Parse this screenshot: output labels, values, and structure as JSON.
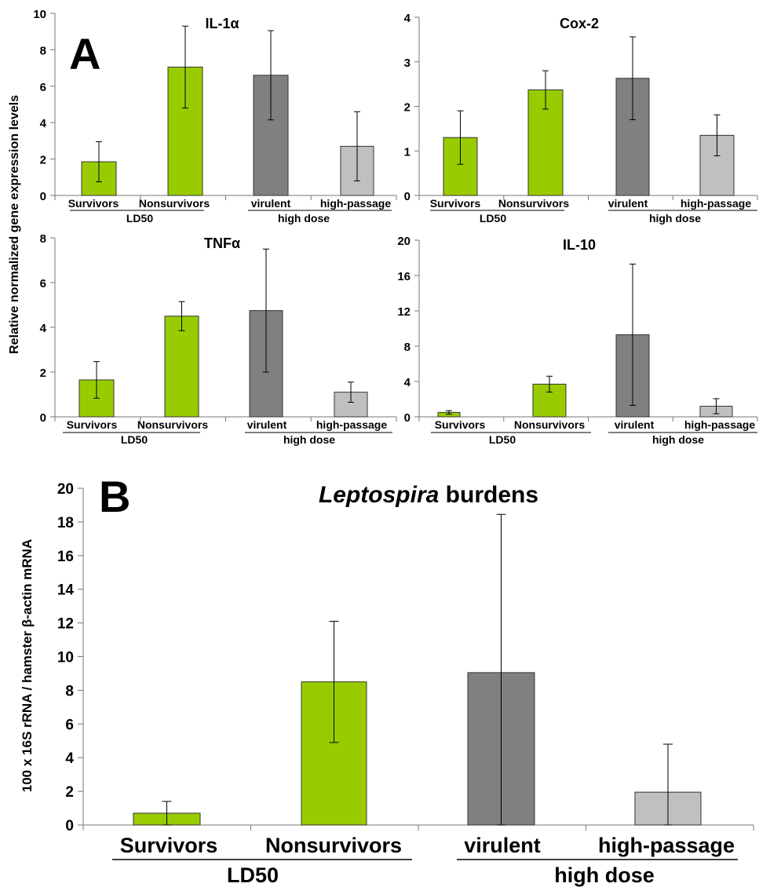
{
  "panels": {
    "a_letter": "A",
    "b_letter": "B",
    "a_ylabel": "Relative normalized gene expression levels",
    "b_ylabel": "100 x 16S rRNA / hamster β-actin mRNA",
    "b_title_italic": "Leptospira",
    "b_title_rest": " burdens"
  },
  "colors": {
    "survivors": "#99cc00",
    "nonsurvivors": "#99cc00",
    "virulent": "#808080",
    "high_passage": "#c0c0c0"
  },
  "chart_data": [
    {
      "type": "bar",
      "title": "IL-1α",
      "categories": [
        "Survivors",
        "Nonsurvivors",
        "virulent",
        "high-passage"
      ],
      "groups": [
        {
          "label": "LD50",
          "members": [
            "Survivors",
            "Nonsurvivors"
          ]
        },
        {
          "label": "high dose",
          "members": [
            "virulent",
            "high-passage"
          ]
        }
      ],
      "values": [
        1.85,
        7.05,
        6.6,
        2.7
      ],
      "errors": [
        1.1,
        2.25,
        2.45,
        1.9
      ],
      "yticks": [
        0,
        2,
        4,
        6,
        8,
        10
      ],
      "ylim": [
        0,
        10
      ]
    },
    {
      "type": "bar",
      "title": "Cox-2",
      "categories": [
        "Survivors",
        "Nonsurvivors",
        "virulent",
        "high-passage"
      ],
      "groups": [
        {
          "label": "LD50",
          "members": [
            "Survivors",
            "Nonsurvivors"
          ]
        },
        {
          "label": "high dose",
          "members": [
            "virulent",
            "high-passage"
          ]
        }
      ],
      "values": [
        1.3,
        2.37,
        2.63,
        1.35
      ],
      "errors": [
        0.6,
        0.43,
        0.93,
        0.46
      ],
      "yticks": [
        0,
        1,
        2,
        3,
        4
      ],
      "ylim": [
        0,
        4
      ]
    },
    {
      "type": "bar",
      "title": "TNFα",
      "categories": [
        "Survivors",
        "Nonsurvivors",
        "virulent",
        "high-passage"
      ],
      "groups": [
        {
          "label": "LD50",
          "members": [
            "Survivors",
            "Nonsurvivors"
          ]
        },
        {
          "label": "high dose",
          "members": [
            "virulent",
            "high-passage"
          ]
        }
      ],
      "values": [
        1.65,
        4.5,
        4.75,
        1.1
      ],
      "errors": [
        0.82,
        0.65,
        2.75,
        0.45
      ],
      "yticks": [
        0,
        2,
        4,
        6,
        8
      ],
      "ylim": [
        0,
        8
      ]
    },
    {
      "type": "bar",
      "title": "IL-10",
      "categories": [
        "Survivors",
        "Nonsurvivors",
        "virulent",
        "high-passage"
      ],
      "groups": [
        {
          "label": "LD50",
          "members": [
            "Survivors",
            "Nonsurvivors"
          ]
        },
        {
          "label": "high dose",
          "members": [
            "virulent",
            "high-passage"
          ]
        }
      ],
      "values": [
        0.5,
        3.7,
        9.3,
        1.2
      ],
      "errors": [
        0.2,
        0.9,
        8.0,
        0.85
      ],
      "yticks": [
        0,
        4,
        8,
        12,
        16,
        20
      ],
      "ylim": [
        0,
        20
      ]
    },
    {
      "type": "bar",
      "title": "Leptospira burdens",
      "categories": [
        "Survivors",
        "Nonsurvivors",
        "virulent",
        "high-passage"
      ],
      "groups": [
        {
          "label": "LD50",
          "members": [
            "Survivors",
            "Nonsurvivors"
          ]
        },
        {
          "label": "high dose",
          "members": [
            "virulent",
            "high-passage"
          ]
        }
      ],
      "values": [
        0.7,
        8.5,
        9.05,
        1.95
      ],
      "errors": [
        0.7,
        3.6,
        9.4,
        2.85
      ],
      "yticks": [
        0,
        2,
        4,
        6,
        8,
        10,
        12,
        14,
        16,
        18,
        20
      ],
      "ylim": [
        0,
        20
      ],
      "ylabel": "100 x 16S rRNA / hamster β-actin mRNA"
    }
  ]
}
